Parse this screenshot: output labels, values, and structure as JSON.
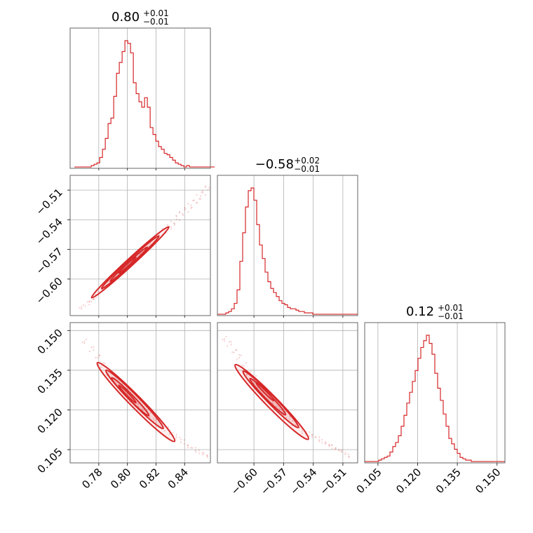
{
  "chart_data": {
    "type": "corner",
    "color": "#d62728",
    "grid": true,
    "parameters": [
      {
        "title_value": "0.80",
        "title_plus": "+0.01",
        "title_minus": "−0.01",
        "range": [
          0.76,
          0.858
        ],
        "ticks": [
          0.78,
          0.8,
          0.82,
          0.84
        ],
        "tick_labels": [
          "0.78",
          "0.80",
          "0.82",
          "0.84"
        ],
        "histogram": {
          "start": 0.763,
          "width": 0.00196,
          "counts": [
            1,
            1,
            1,
            1,
            1,
            1,
            2,
            3,
            4,
            8,
            14,
            22,
            33,
            37,
            53,
            70,
            78,
            86,
            94,
            92,
            85,
            63,
            55,
            49,
            45,
            52,
            45,
            30,
            25,
            20,
            16,
            14,
            11,
            10,
            8,
            6,
            4,
            3,
            2,
            1,
            2,
            1,
            1,
            1,
            1,
            1,
            1,
            1,
            1,
            1
          ]
        }
      },
      {
        "title_value": "−0.58",
        "title_plus": "+0.02",
        "title_minus": "−0.01",
        "range": [
          -0.637,
          -0.495
        ],
        "ticks": [
          -0.6,
          -0.57,
          -0.54,
          -0.51
        ],
        "tick_labels": [
          "−0.60",
          "−0.57",
          "−0.54",
          "−0.51"
        ],
        "histogram": {
          "start": -0.637,
          "width": 0.00284,
          "counts": [
            1,
            1,
            1,
            2,
            3,
            5,
            9,
            19,
            40,
            61,
            80,
            92,
            94,
            85,
            67,
            52,
            42,
            32,
            25,
            20,
            17,
            14,
            11,
            9,
            8,
            6,
            5,
            5,
            4,
            3,
            3,
            2,
            2,
            2,
            1,
            1,
            1,
            1,
            1,
            1,
            1,
            1,
            1,
            1,
            1,
            1,
            1,
            1,
            1,
            1
          ]
        }
      },
      {
        "title_value": "0.12",
        "title_plus": "+0.01",
        "title_minus": "−0.01",
        "range": [
          0.1,
          0.153
        ],
        "ticks": [
          0.105,
          0.12,
          0.135,
          0.15
        ],
        "tick_labels": [
          "0.105",
          "0.120",
          "0.135",
          "0.150"
        ],
        "histogram": {
          "start": 0.1,
          "width": 0.00106,
          "counts": [
            1,
            1,
            1,
            1,
            1,
            2,
            3,
            4,
            5,
            8,
            12,
            15,
            20,
            27,
            35,
            44,
            52,
            60,
            68,
            77,
            85,
            90,
            94,
            88,
            80,
            66,
            55,
            46,
            36,
            27,
            18,
            14,
            10,
            7,
            4,
            3,
            2,
            2,
            1,
            1,
            1,
            1,
            1,
            1,
            1,
            1,
            1,
            1,
            1,
            1
          ]
        }
      }
    ],
    "pairs": [
      {
        "x_param": 0,
        "y_param": 1,
        "scatter_x": [
          0.768,
          0.772,
          0.775,
          0.778,
          0.781,
          0.784,
          0.787,
          0.79,
          0.793,
          0.796,
          0.799,
          0.802,
          0.805,
          0.808,
          0.811,
          0.814,
          0.817,
          0.82,
          0.823,
          0.826,
          0.829,
          0.832,
          0.835,
          0.838,
          0.841,
          0.844,
          0.847,
          0.85,
          0.853,
          0.856
        ],
        "scatter_y": [
          -0.628,
          -0.625,
          -0.622,
          -0.618,
          -0.613,
          -0.609,
          -0.604,
          -0.6,
          -0.596,
          -0.592,
          -0.588,
          -0.584,
          -0.58,
          -0.576,
          -0.572,
          -0.568,
          -0.563,
          -0.559,
          -0.555,
          -0.551,
          -0.547,
          -0.543,
          -0.538,
          -0.534,
          -0.53,
          -0.526,
          -0.521,
          -0.517,
          -0.513,
          -0.508
        ],
        "contours": [
          {
            "cx": 0.802,
            "cy": -0.583,
            "rx": 0.027,
            "ry": 0.0036,
            "slope": 1.33
          },
          {
            "cx": 0.802,
            "cy": -0.583,
            "rx": 0.02,
            "ry": 0.0026,
            "slope": 1.33
          },
          {
            "cx": 0.801,
            "cy": -0.585,
            "rx": 0.013,
            "ry": 0.0017,
            "slope": 1.33
          },
          {
            "cx": 0.8,
            "cy": -0.586,
            "rx": 0.006,
            "ry": 0.0009,
            "slope": 1.33
          }
        ]
      },
      {
        "x_param": 0,
        "y_param": 2,
        "scatter_x": [
          0.77,
          0.775,
          0.779,
          0.783,
          0.787,
          0.791,
          0.795,
          0.799,
          0.803,
          0.807,
          0.811,
          0.815,
          0.819,
          0.823,
          0.827,
          0.831,
          0.835,
          0.839,
          0.843,
          0.847,
          0.851,
          0.855
        ],
        "scatter_y": [
          0.146,
          0.143,
          0.14,
          0.137,
          0.134,
          0.132,
          0.129,
          0.127,
          0.124,
          0.122,
          0.12,
          0.118,
          0.116,
          0.114,
          0.113,
          0.111,
          0.11,
          0.108,
          0.106,
          0.105,
          0.104,
          0.103
        ],
        "contours": [
          {
            "cx": 0.806,
            "cy": 0.123,
            "rx": 0.027,
            "ry": 0.0022,
            "slope": -0.55
          },
          {
            "cx": 0.805,
            "cy": 0.124,
            "rx": 0.02,
            "ry": 0.0015,
            "slope": -0.55
          },
          {
            "cx": 0.802,
            "cy": 0.125,
            "rx": 0.013,
            "ry": 0.001,
            "slope": -0.55
          },
          {
            "cx": 0.8,
            "cy": 0.126,
            "rx": 0.006,
            "ry": 0.0005,
            "slope": -0.55
          }
        ]
      },
      {
        "x_param": 1,
        "y_param": 2,
        "scatter_x": [
          -0.63,
          -0.625,
          -0.62,
          -0.615,
          -0.61,
          -0.605,
          -0.6,
          -0.595,
          -0.59,
          -0.585,
          -0.58,
          -0.575,
          -0.57,
          -0.565,
          -0.56,
          -0.555,
          -0.55,
          -0.545,
          -0.54,
          -0.535,
          -0.53,
          -0.525,
          -0.52,
          -0.515,
          -0.51,
          -0.505
        ],
        "scatter_y": [
          0.147,
          0.145,
          0.142,
          0.14,
          0.137,
          0.134,
          0.132,
          0.129,
          0.127,
          0.125,
          0.123,
          0.121,
          0.119,
          0.117,
          0.115,
          0.114,
          0.112,
          0.111,
          0.11,
          0.109,
          0.108,
          0.107,
          0.106,
          0.105,
          0.104,
          0.103
        ],
        "contours": [
          {
            "cx": -0.582,
            "cy": 0.123,
            "rx": 0.037,
            "ry": 0.0022,
            "slope": -0.38
          },
          {
            "cx": -0.583,
            "cy": 0.124,
            "rx": 0.028,
            "ry": 0.0015,
            "slope": -0.38
          },
          {
            "cx": -0.586,
            "cy": 0.125,
            "rx": 0.018,
            "ry": 0.001,
            "slope": -0.38
          },
          {
            "cx": -0.589,
            "cy": 0.127,
            "rx": 0.009,
            "ry": 0.0005,
            "slope": -0.38
          }
        ]
      }
    ]
  }
}
